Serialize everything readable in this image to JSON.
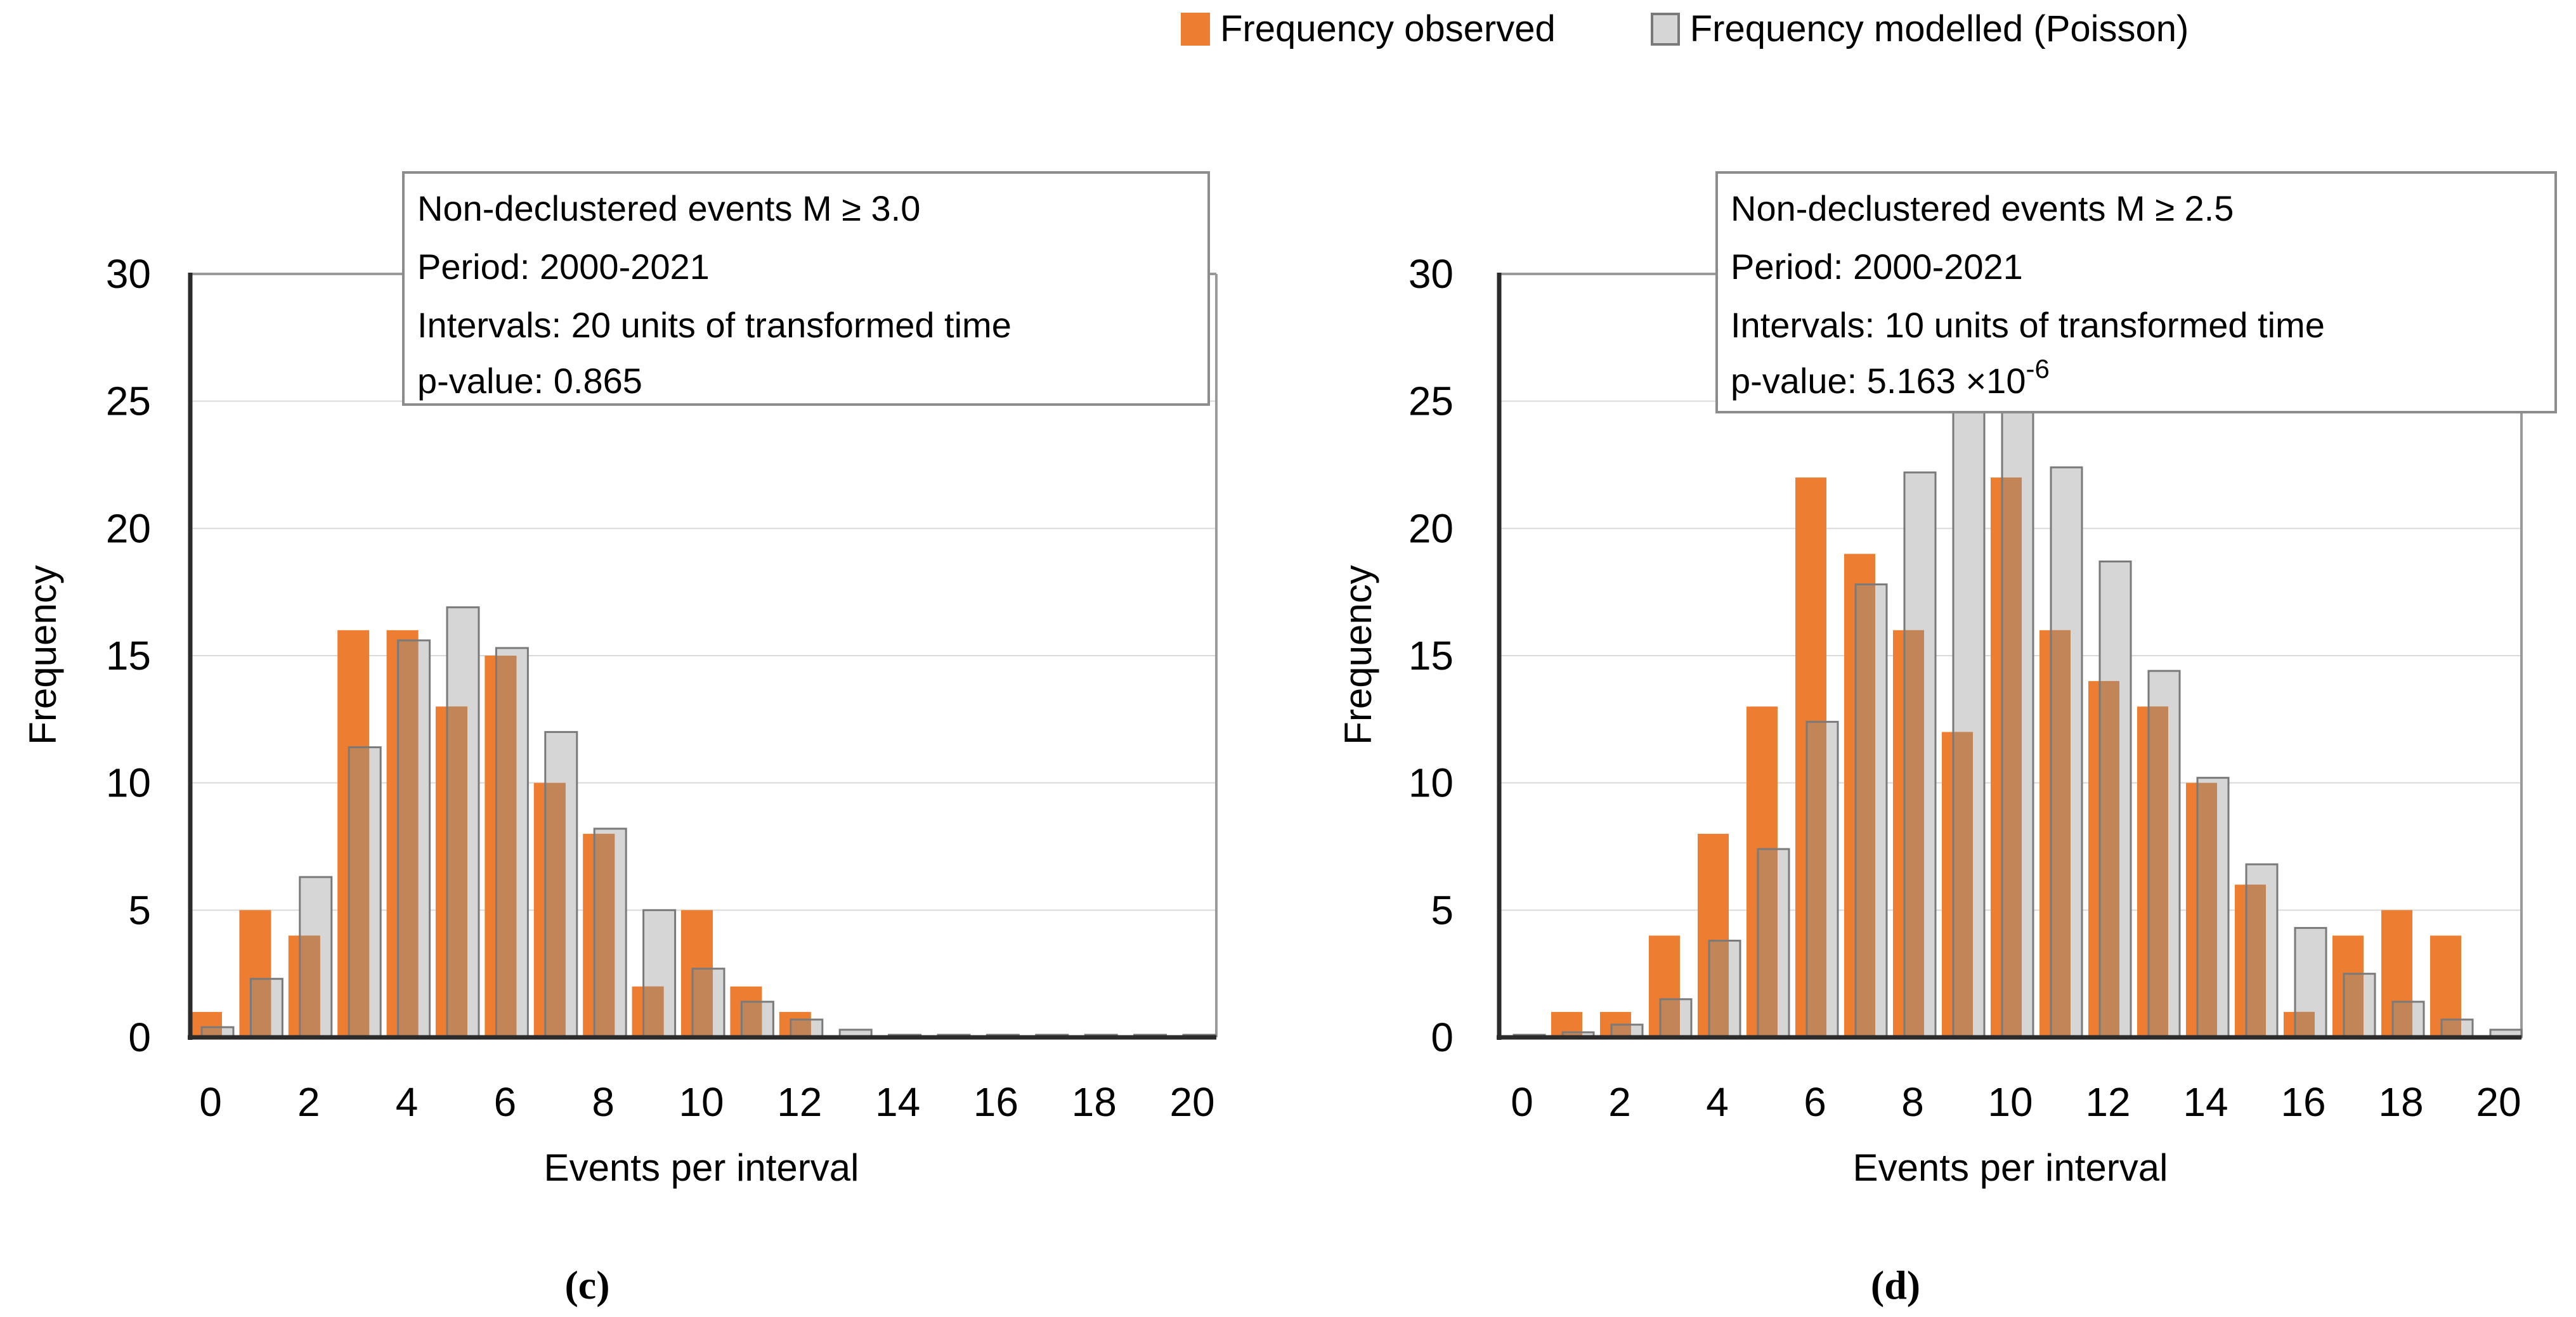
{
  "figure": {
    "legend": {
      "items": [
        {
          "label": "Frequency observed",
          "swatch_icon": "orange-square"
        },
        {
          "label": "Frequency modelled (Poisson)",
          "swatch_icon": "gray-square"
        }
      ],
      "position": "top-center"
    },
    "colors": {
      "observed": "#ED7D31",
      "modelled_fill": "#D6D6D6",
      "modelled_border": "#7A7A7A",
      "overlap": "#C28558",
      "axis": "#2B2B2B",
      "plot_border": "#9A9A9A",
      "gridline": "#D9D9D9",
      "annotation_border": "#8C8C8C"
    }
  },
  "charts": [
    {
      "panel_label": "(c)",
      "annotation": {
        "line1": "Non-declustered events M ≥ 3.0",
        "line2": "Period: 2000-2021",
        "line3": "Intervals: 20 units of transformed time",
        "p_prefix": "p-value: 0.865",
        "p_exponent": ""
      },
      "chart_data": {
        "type": "bar",
        "x": [
          0,
          1,
          2,
          3,
          4,
          5,
          6,
          7,
          8,
          9,
          10,
          11,
          12,
          13,
          14,
          15,
          16,
          17,
          18,
          19,
          20
        ],
        "series": [
          {
            "name": "Frequency observed",
            "values": [
              1,
              5,
              4,
              16,
              16,
              13,
              15,
              10,
              8,
              2,
              5,
              2,
              1,
              0,
              0,
              0,
              0,
              0,
              0,
              0,
              0
            ]
          },
          {
            "name": "Frequency modelled (Poisson)",
            "values": [
              0.4,
              2.3,
              6.3,
              11.4,
              15.6,
              16.9,
              15.3,
              12.0,
              8.2,
              5.0,
              2.7,
              1.4,
              0.7,
              0.3,
              0.1,
              0.1,
              0.1,
              0.1,
              0.1,
              0.1,
              0.1
            ]
          }
        ],
        "xlabel": "Events per interval",
        "ylabel": "Frequency",
        "ylim": [
          0,
          30
        ],
        "yticks": [
          0,
          5,
          10,
          15,
          20,
          25,
          30
        ],
        "xtick_labels": [
          0,
          2,
          4,
          6,
          8,
          10,
          12,
          14,
          16,
          18,
          20
        ],
        "grid": "horizontal",
        "legend_position": "top"
      }
    },
    {
      "panel_label": "(d)",
      "annotation": {
        "line1": "Non-declustered events M ≥ 2.5",
        "line2": "Period: 2000-2021",
        "line3": "Intervals: 10 units of transformed time",
        "p_prefix": "p-value: 5.163 ×10",
        "p_exponent": "-6"
      },
      "chart_data": {
        "type": "bar",
        "x": [
          0,
          1,
          2,
          3,
          4,
          5,
          6,
          7,
          8,
          9,
          10,
          11,
          12,
          13,
          14,
          15,
          16,
          17,
          18,
          19,
          20
        ],
        "series": [
          {
            "name": "Frequency observed",
            "values": [
              0,
              1,
              1,
              4,
              8,
              13,
              22,
              19,
              16,
              12,
              22,
              16,
              14,
              13,
              10,
              6,
              1,
              4,
              5,
              4,
              0
            ]
          },
          {
            "name": "Frequency modelled (Poisson)",
            "values": [
              0.1,
              0.2,
              0.5,
              1.5,
              3.8,
              7.4,
              12.4,
              17.8,
              22.2,
              24.6,
              24.6,
              22.4,
              18.7,
              14.4,
              10.2,
              6.8,
              4.3,
              2.5,
              1.4,
              0.7,
              0.3
            ]
          }
        ],
        "xlabel": "Events per interval",
        "ylabel": "Frequency",
        "ylim": [
          0,
          30
        ],
        "yticks": [
          0,
          5,
          10,
          15,
          20,
          25,
          30
        ],
        "xtick_labels": [
          0,
          2,
          4,
          6,
          8,
          10,
          12,
          14,
          16,
          18,
          20
        ],
        "grid": "horizontal",
        "legend_position": "top"
      }
    }
  ]
}
